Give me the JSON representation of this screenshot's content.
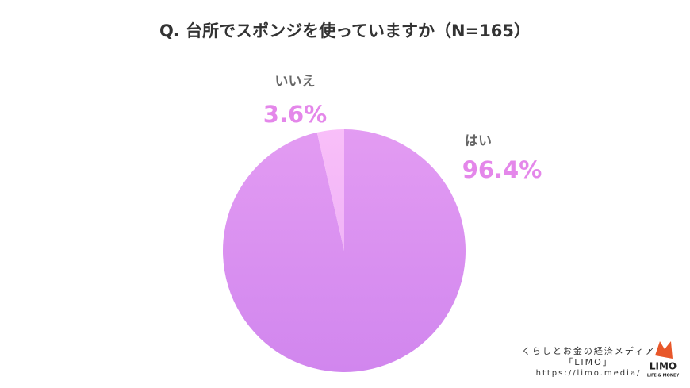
{
  "chart_data": {
    "type": "pie",
    "title": "Q. 台所でスポンジを使っていますか（N=165）",
    "categories": [
      "はい",
      "いいえ"
    ],
    "values": [
      96.4,
      3.6
    ],
    "value_labels": [
      "96.4%",
      "3.6%"
    ],
    "colors": [
      "#df8ef1",
      "#f8b6f8"
    ]
  },
  "footer": {
    "tagline": "くらしとお金の経済メディア",
    "brand": "「LIMO」",
    "url": "https://limo.media/",
    "logo": "LIMO",
    "logo_sub": "LIFE & MONEY"
  }
}
